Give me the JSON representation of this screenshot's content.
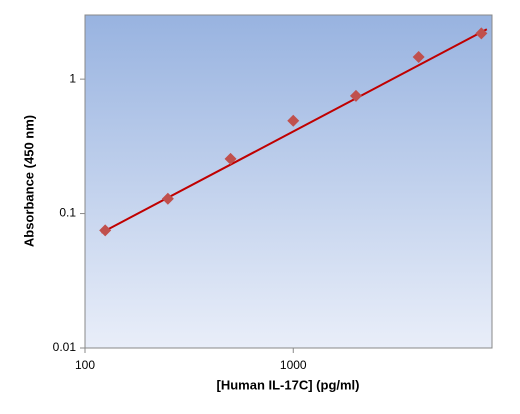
{
  "chart_data": {
    "type": "scatter",
    "x_label": "[Human IL-17C] (pg/ml)",
    "y_label": "Absorbance (450 nm)",
    "log_x": true,
    "log_y": true,
    "xlim": [
      100,
      9000
    ],
    "ylim": [
      0.01,
      3
    ],
    "xticks": [
      100,
      1000
    ],
    "yticks": [
      0.01,
      0.1,
      1
    ],
    "series": [
      {
        "type": "scatter",
        "color": "#c0504d",
        "x": [
          125,
          250,
          500,
          1000,
          2000,
          4000,
          8000
        ],
        "values": [
          0.075,
          0.129,
          0.255,
          0.49,
          0.75,
          1.46,
          2.19
        ]
      },
      {
        "type": "line",
        "color": "#c00000",
        "x": [
          120,
          8500
        ],
        "values": [
          0.072,
          2.35
        ]
      }
    ]
  }
}
